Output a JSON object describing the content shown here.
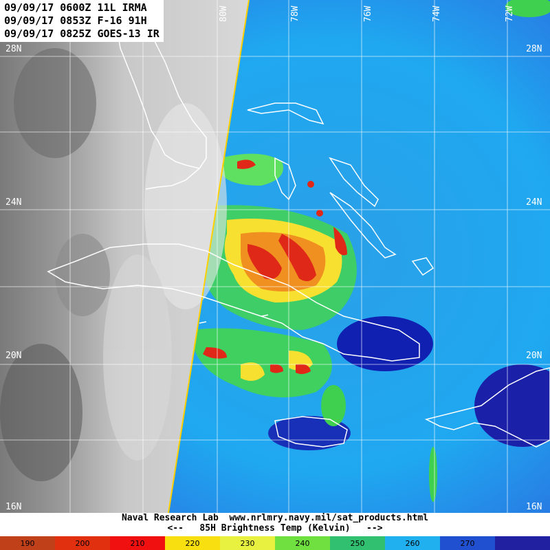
{
  "header": {
    "line1": "09/09/17 0600Z 11L IRMA",
    "line2": "09/09/17 0853Z F-16 91H",
    "line3": "09/09/17 0825Z GOES-13 IR"
  },
  "lat_labels": {
    "n28": "28N",
    "n24": "24N",
    "n20": "20N",
    "n16": "16N"
  },
  "lon_labels": {
    "w80": "80W",
    "w78": "78W",
    "w76": "76W",
    "w74": "74W",
    "w72": "72W"
  },
  "footer": {
    "credit": "Naval Research Lab  www.nrlmry.navy.mil/sat_products.html",
    "legend_title": "<--   85H Brightness Temp (Kelvin)   -->"
  },
  "colorbar": {
    "ticks": [
      "190",
      "200",
      "210",
      "220",
      "230",
      "240",
      "250",
      "260",
      "270"
    ],
    "colors": [
      "#c0401a",
      "#e03010",
      "#f01010",
      "#f8e010",
      "#e8f040",
      "#70e040",
      "#30c070",
      "#20b0f0",
      "#2050d0",
      "#2020a0"
    ]
  },
  "colors": {
    "overpass_line": "#ffd000",
    "coastline": "#ffffff",
    "gridline": "#ffffff"
  }
}
